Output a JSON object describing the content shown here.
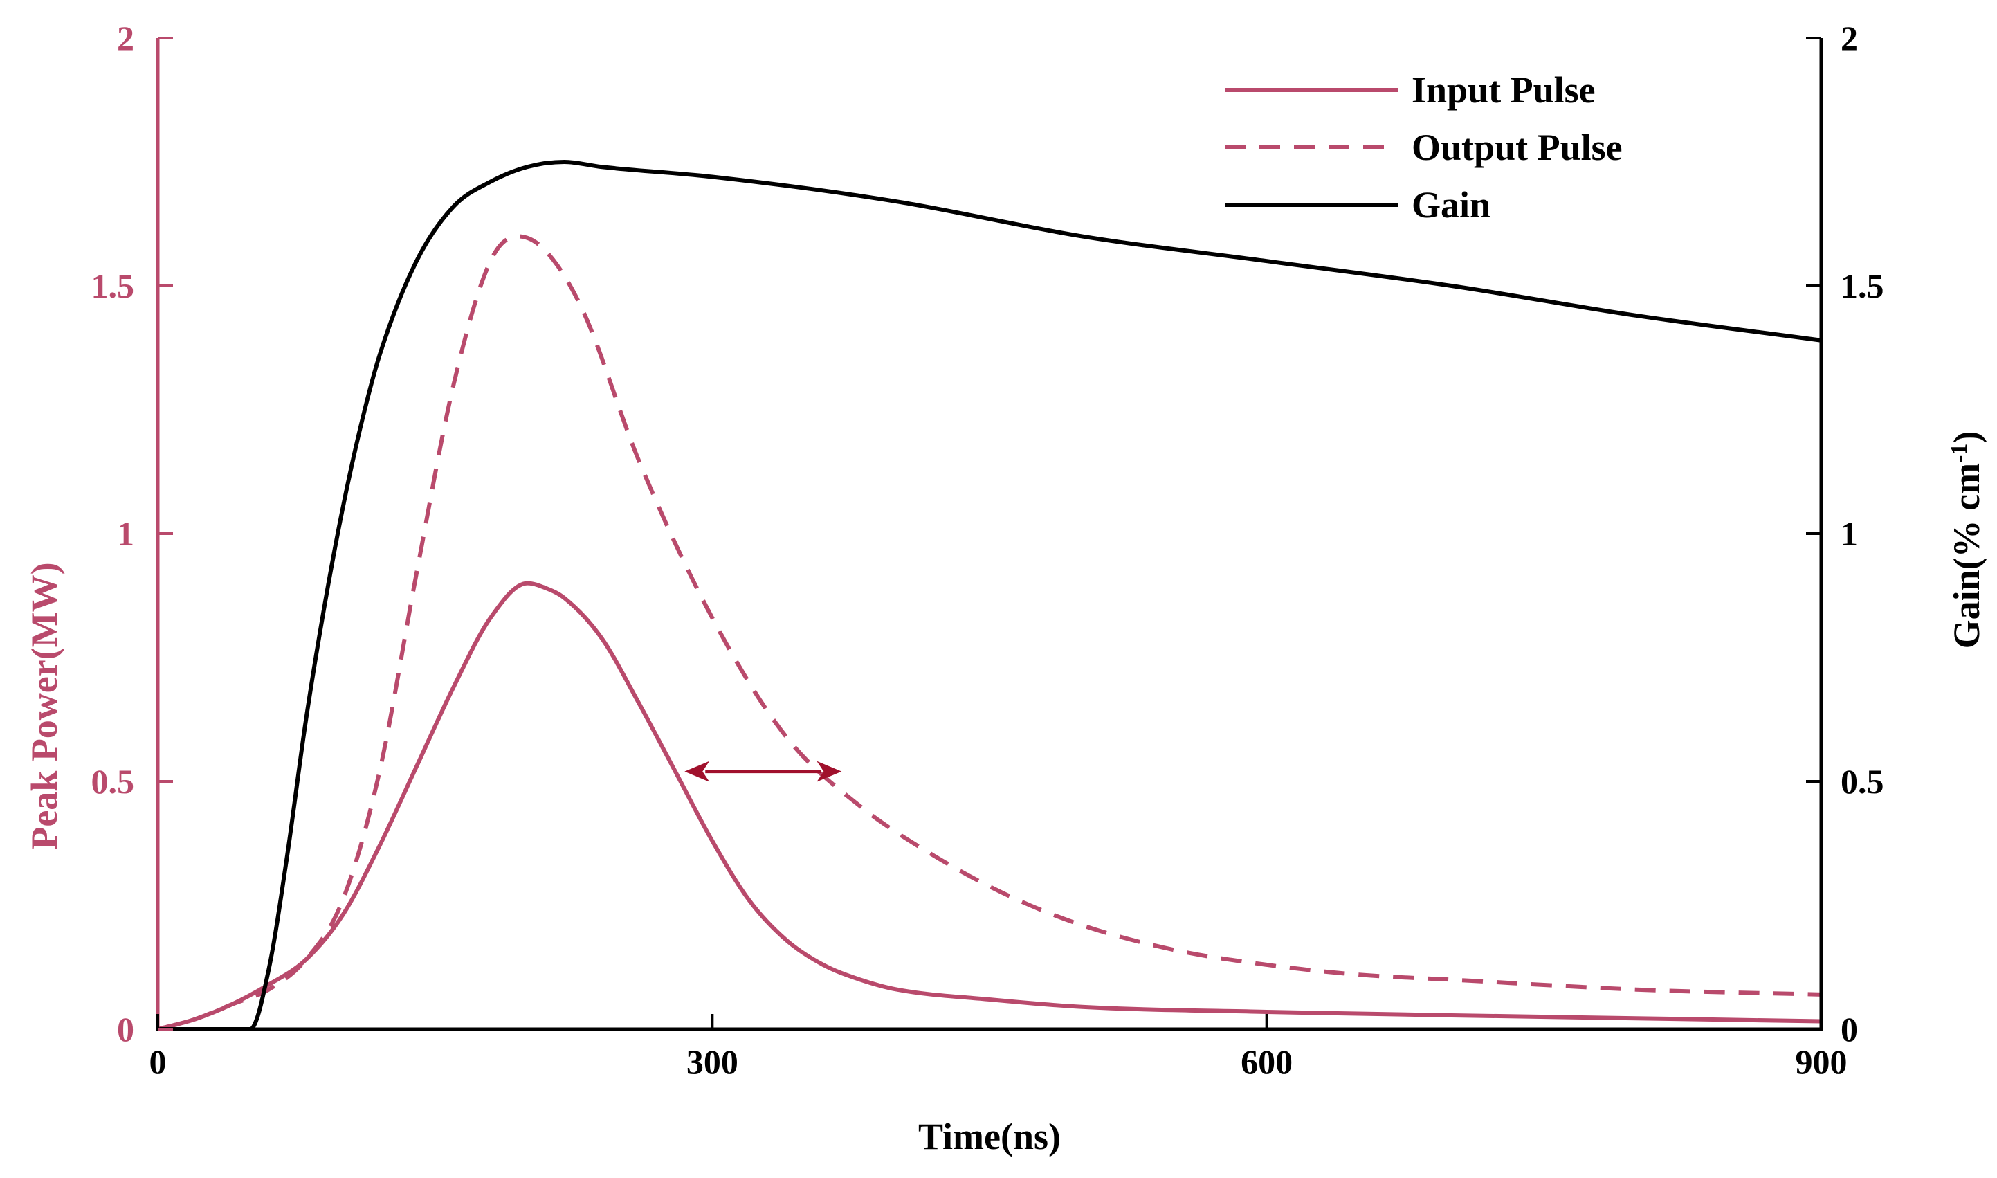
{
  "chart_data": {
    "type": "line",
    "title": "",
    "xlabel": "Time(ns)",
    "ylabel_left": "Peak Power(MW)",
    "ylabel_right_main": "Gain(% cm",
    "ylabel_right_sup": "-1",
    "ylabel_right_close": ")",
    "xlim": [
      0,
      900
    ],
    "ylim_left": [
      0,
      2
    ],
    "ylim_right": [
      0,
      2
    ],
    "xticks": [
      0,
      300,
      600,
      900
    ],
    "xtick_labels": [
      "0",
      "300",
      "600",
      "900"
    ],
    "yticks_left": [
      0,
      0.5,
      1,
      1.5,
      2
    ],
    "ytick_labels_left": [
      "0",
      "0.5",
      "1",
      "1.5",
      "2"
    ],
    "yticks_right": [
      0,
      0.5,
      1,
      1.5,
      2
    ],
    "ytick_labels_right": [
      "0",
      "0.5",
      "1",
      "1.5",
      "2"
    ],
    "grid": false,
    "legend_position": "top-right",
    "colors": {
      "pulse": "#b94a6c",
      "gain": "#000000",
      "arrow": "#a0102c",
      "left_axis": "#b94a6c",
      "right_axis": "#000000"
    },
    "series": [
      {
        "name": "Input Pulse",
        "axis": "left",
        "style": "solid",
        "x": [
          0,
          20,
          40,
          60,
          80,
          100,
          120,
          140,
          160,
          180,
          200,
          210,
          220,
          240,
          260,
          280,
          300,
          320,
          340,
          360,
          380,
          400,
          450,
          500,
          600,
          700,
          800,
          900
        ],
        "y": [
          0,
          0.02,
          0.05,
          0.09,
          0.14,
          0.23,
          0.37,
          0.53,
          0.69,
          0.83,
          0.9,
          0.89,
          0.87,
          0.79,
          0.66,
          0.52,
          0.38,
          0.26,
          0.18,
          0.13,
          0.1,
          0.08,
          0.06,
          0.045,
          0.035,
          0.028,
          0.022,
          0.016
        ]
      },
      {
        "name": "Output Pulse",
        "axis": "left",
        "style": "dashed",
        "x": [
          0,
          20,
          40,
          60,
          80,
          100,
          120,
          140,
          160,
          180,
          195,
          210,
          230,
          260,
          300,
          340,
          380,
          420,
          460,
          500,
          550,
          600,
          650,
          700,
          800,
          900
        ],
        "y": [
          0,
          0.02,
          0.05,
          0.08,
          0.14,
          0.26,
          0.52,
          0.92,
          1.3,
          1.55,
          1.6,
          1.57,
          1.45,
          1.15,
          0.83,
          0.59,
          0.45,
          0.35,
          0.27,
          0.21,
          0.16,
          0.13,
          0.11,
          0.1,
          0.08,
          0.07
        ]
      },
      {
        "name": "Gain",
        "axis": "right",
        "style": "solid",
        "x": [
          0,
          50,
          60,
          70,
          80,
          90,
          100,
          110,
          120,
          140,
          160,
          180,
          200,
          220,
          240,
          300,
          400,
          500,
          600,
          700,
          800,
          900
        ],
        "y": [
          0,
          0,
          0.12,
          0.35,
          0.62,
          0.85,
          1.05,
          1.22,
          1.36,
          1.55,
          1.66,
          1.71,
          1.74,
          1.75,
          1.74,
          1.72,
          1.67,
          1.6,
          1.55,
          1.5,
          1.44,
          1.39
        ]
      }
    ],
    "annotations": [
      {
        "type": "double-arrow",
        "x1": 285,
        "x2": 370,
        "y": 0.52,
        "axis": "left"
      }
    ]
  }
}
